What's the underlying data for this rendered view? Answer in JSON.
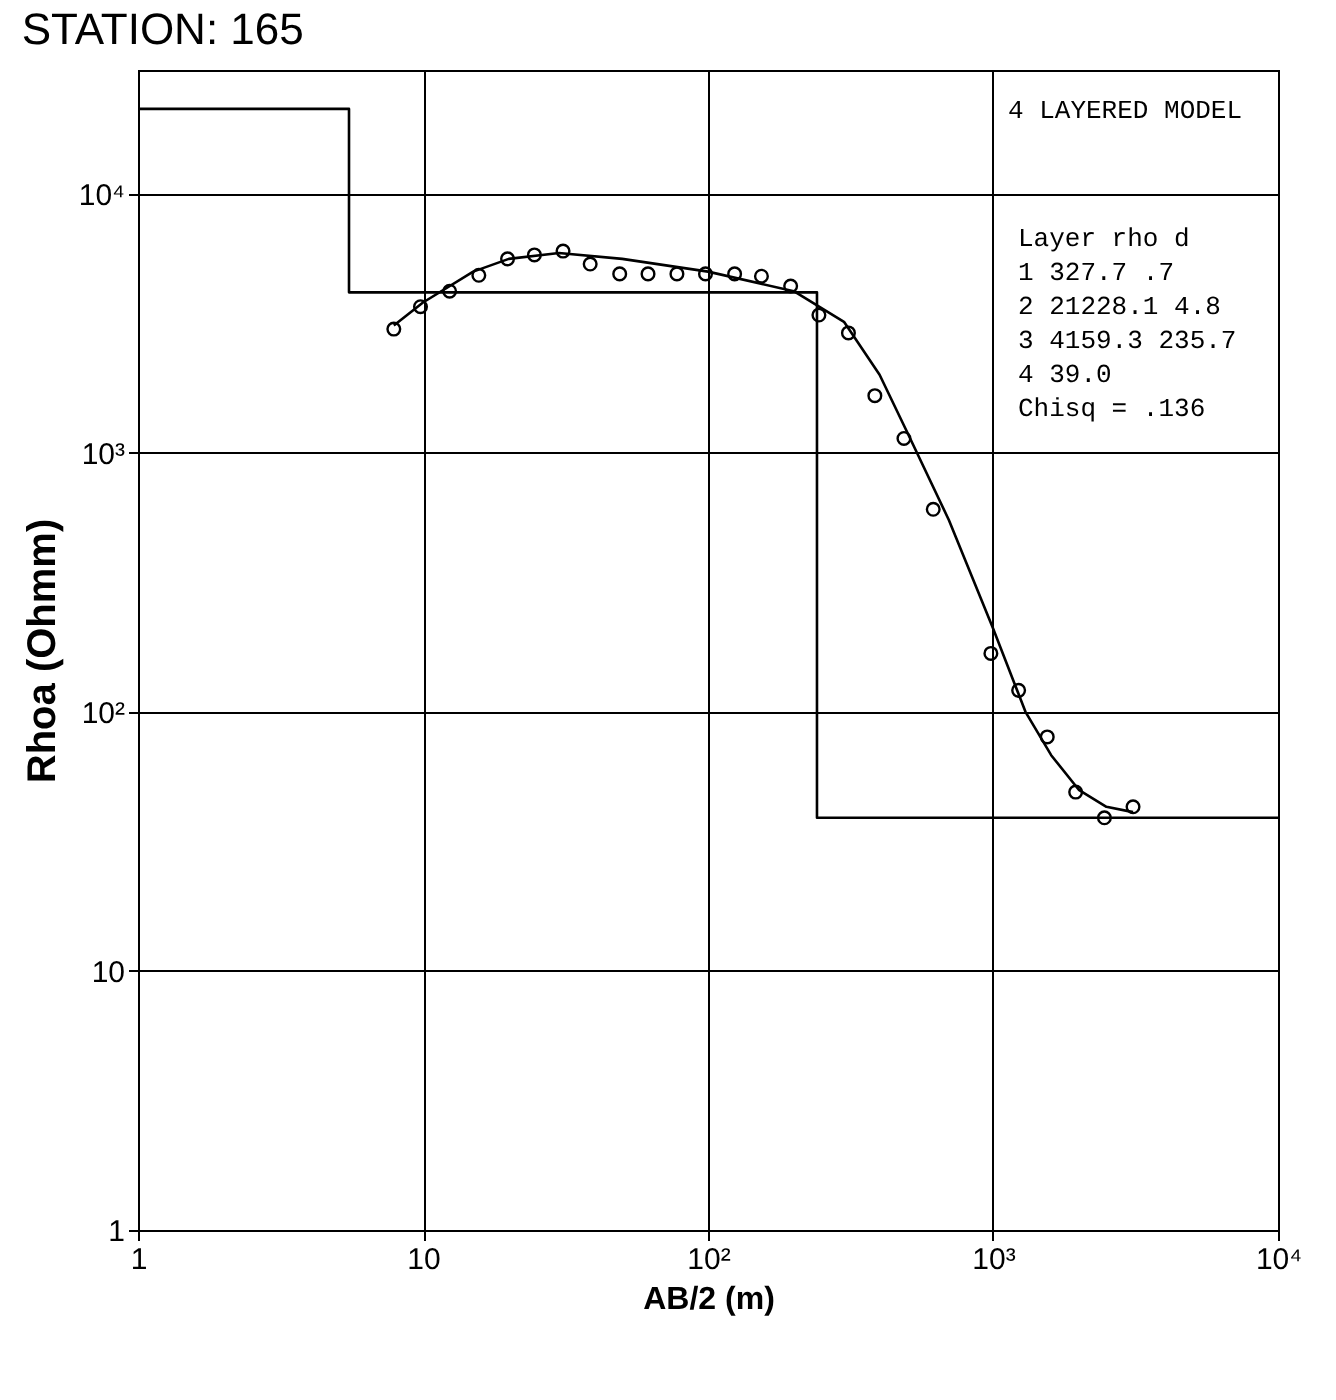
{
  "chart_data": {
    "type": "scatter",
    "title": "STATION: 165",
    "xlabel": "AB/2 (m)",
    "ylabel": "Rhoa (Ohmm)",
    "log": "xy",
    "grid": true,
    "xlim": [
      1,
      10000
    ],
    "ylim": [
      1,
      30000
    ],
    "xticks": [
      {
        "value": 1,
        "label": "1"
      },
      {
        "value": 10,
        "label": "10"
      },
      {
        "value": 100,
        "label": "10²"
      },
      {
        "value": 1000,
        "label": "10³"
      },
      {
        "value": 10000,
        "label": "10⁴"
      }
    ],
    "yticks": [
      {
        "value": 1,
        "label": "1"
      },
      {
        "value": 10,
        "label": "10"
      },
      {
        "value": 100,
        "label": "10²"
      },
      {
        "value": 1000,
        "label": "10³"
      },
      {
        "value": 10000,
        "label": "10⁴"
      }
    ],
    "annotations": [
      "4 LAYERED MODEL",
      "Layer rho d",
      "1 327.7 .7",
      "2 21228.1 4.8",
      "3 4159.3 235.7",
      "4 39.0",
      "Chisq = .136"
    ],
    "series": [
      {
        "marker": "circle",
        "color": "#000000",
        "x": [
          7.9,
          9.8,
          12.4,
          15.7,
          19.8,
          24.6,
          31,
          38.6,
          49,
          61.6,
          77.8,
          98,
          124,
          154,
          195,
          245,
          311,
          385,
          487,
          617,
          983,
          1230,
          1550,
          1950,
          2460,
          3100
        ],
        "values": [
          3000,
          3660,
          4200,
          4840,
          5600,
          5800,
          6000,
          5350,
          4900,
          4900,
          4900,
          4900,
          4900,
          4800,
          4400,
          3400,
          2900,
          1660,
          1135,
          605,
          168,
          121,
          80,
          49,
          39,
          43
        ]
      },
      {
        "type": "line",
        "line_style": "solid",
        "color": "#000000",
        "x": [
          7.9,
          10,
          15,
          20,
          30,
          50,
          100,
          200,
          300,
          400,
          500,
          700,
          1000,
          1300,
          1600,
          2000,
          2500,
          3100
        ],
        "values": [
          3100,
          3800,
          5000,
          5600,
          5900,
          5600,
          5000,
          4200,
          3200,
          2000,
          1200,
          550,
          210,
          100,
          68,
          50,
          43,
          41
        ]
      },
      {
        "type": "line",
        "line_style": "solid",
        "color": "#000000",
        "x": [
          1,
          5.5,
          5.5,
          241.2,
          241.2,
          10000
        ],
        "values": [
          21228.1,
          21228.1,
          4159.3,
          4159.3,
          39.0,
          39.0
        ]
      }
    ]
  }
}
